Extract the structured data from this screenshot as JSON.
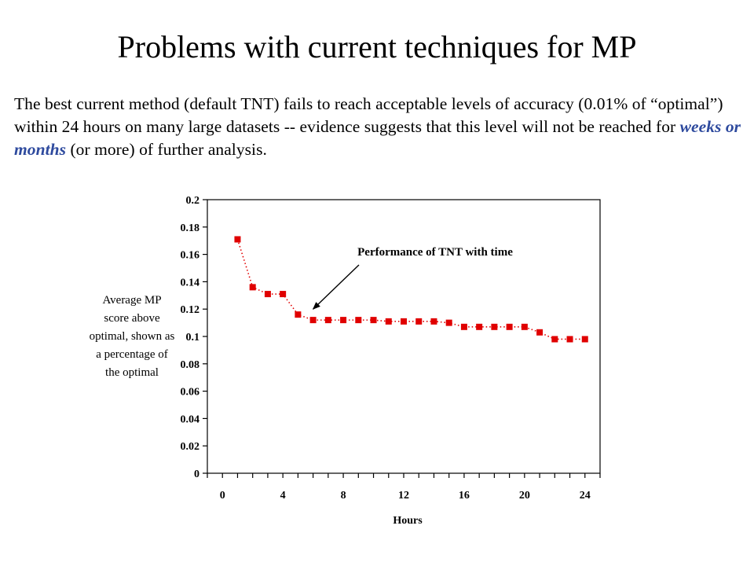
{
  "slide": {
    "title": "Problems with current techniques for MP",
    "body_part1": "The best current method (default TNT) fails to reach acceptable levels of accuracy (0.01% of “optimal”) within 24 hours on many large datasets -- evidence suggests that this level will not be reached for ",
    "body_emphasis": "weeks or months",
    "body_part2": " (or more) of further analysis.",
    "emphasis_color": "#2e4a9e"
  },
  "chart_data": {
    "type": "line",
    "title": "",
    "xlabel": "Hours",
    "ylabel_lines": [
      "Average MP",
      "score above",
      "optimal, shown as",
      "a percentage of",
      "the optimal"
    ],
    "xlim": [
      -1,
      25
    ],
    "ylim": [
      0,
      0.2
    ],
    "x_ticks": [
      0,
      4,
      8,
      12,
      16,
      20,
      24
    ],
    "y_ticks": [
      0,
      0.02,
      0.04,
      0.06,
      0.08,
      0.1,
      0.12,
      0.14,
      0.16,
      0.18,
      0.2
    ],
    "y_tick_labels": [
      "0",
      "0.02",
      "0.04",
      "0.06",
      "0.08",
      "0.1",
      "0.12",
      "0.14",
      "0.16",
      "0.18",
      "0.2"
    ],
    "grid": false,
    "series": [
      {
        "color": "#e00000",
        "line_style": "dotted",
        "marker": "square",
        "x": [
          1,
          2,
          3,
          4,
          5,
          6,
          7,
          8,
          9,
          10,
          11,
          12,
          13,
          14,
          15,
          16,
          17,
          18,
          19,
          20,
          21,
          22,
          23,
          24
        ],
        "y": [
          0.171,
          0.136,
          0.131,
          0.131,
          0.116,
          0.112,
          0.112,
          0.112,
          0.112,
          0.112,
          0.111,
          0.111,
          0.111,
          0.111,
          0.11,
          0.107,
          0.107,
          0.107,
          0.107,
          0.107,
          0.103,
          0.098,
          0.098,
          0.098
        ]
      }
    ],
    "annotation": {
      "text": "Performance of TNT with time",
      "points_to": {
        "x": 6,
        "y": 0.12
      }
    }
  }
}
